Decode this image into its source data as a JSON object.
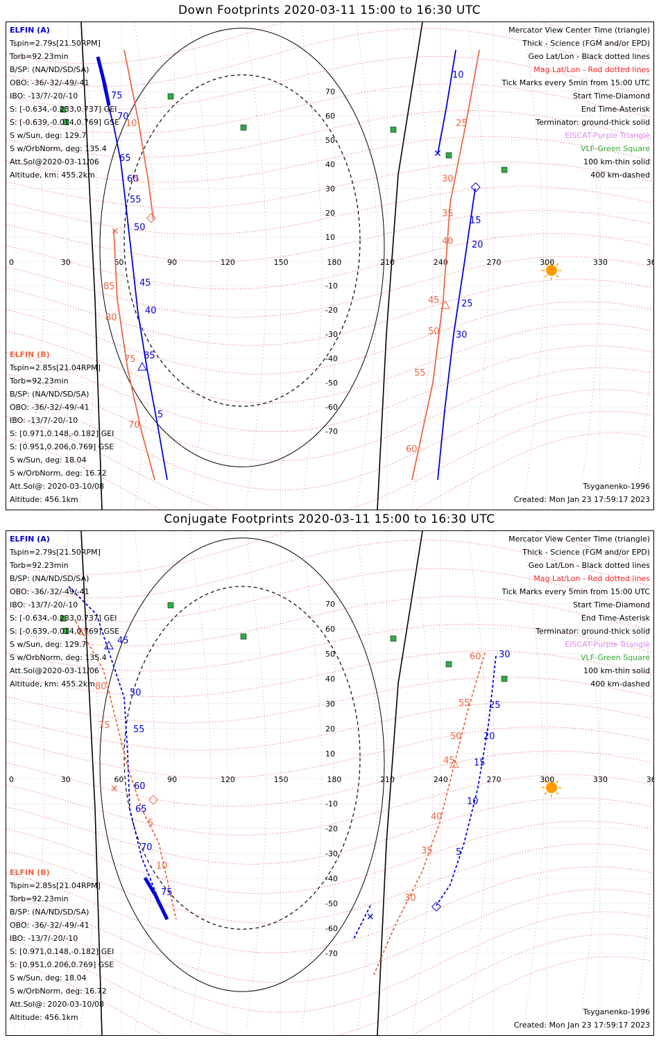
{
  "panels": [
    {
      "title": "Down Footprints 2020-03-11 15:00 to 16:30 UTC",
      "elfin_a": {
        "name": "ELFIN (A)",
        "lines": [
          "Tspin=2.79s[21.50RPM]",
          "Torb=92.23min",
          "B/SP: (NA/ND/SD/SA)",
          "OBO: -36/-32/-49/-41",
          "IBO: -13/7/-20/-10",
          "S: [-0.634,-0.233,0.737] GEI",
          "S: [-0.639,-0.014,0.769] GSE",
          "S w/Sun, deg: 129.7",
          "S w/OrbNorm, deg: 135.4",
          "Att.Sol@2020-03-11/06",
          "Altitude, km: 455.2km"
        ]
      },
      "elfin_b": {
        "name": "ELFIN (B)",
        "lines": [
          "Tspin=2.85s[21.04RPM]",
          "Torb=92.23min",
          "B/SP: (NA/ND/SD/SA)",
          "OBO: -36/-32/-49/-41",
          "IBO: -13/7/-20/-10",
          "S: [0.971,0.148,-0.182] GEI",
          "S: [0.951,0.206,0.769] GSE",
          "S w/Sun, deg: 18.04",
          "S w/OrbNorm, deg: 16.72",
          "Att.Sol@: 2020-03-10/08",
          "Altitude: 456.1km"
        ]
      },
      "footer_right": [
        "Tsyganenko-1996",
        "Created: Mon Jan 23 17:59:17 2023"
      ]
    },
    {
      "title": "Conjugate Footprints 2020-03-11 15:00 to 16:30 UTC",
      "elfin_a": {
        "name": "ELFIN (A)",
        "lines": [
          "Tspin=2.79s[21.50RPM]",
          "Torb=92.23min",
          "B/SP: (NA/ND/SD/SA)",
          "OBO: -36/-32/-49/-41",
          "IBO: -13/7/-20/-10",
          "S: [-0.634,-0.233,0.737] GEI",
          "S: [-0.639,-0.014,0.769] GSE",
          "S w/Sun, deg: 129.7",
          "S w/OrbNorm, deg: 135.4",
          "Att.Sol@2020-03-11/06",
          "Altitude, km: 455.2km"
        ]
      },
      "elfin_b": {
        "name": "ELFIN (B)",
        "lines": [
          "Tspin=2.85s[21.04RPM]",
          "Torb=92.23min",
          "B/SP: (NA/ND/SD/SA)",
          "OBO: -36/-32/-49/-41",
          "IBO: -13/7/-20/-10",
          "S: [0.971,0.148,-0.182] GEI",
          "S: [0.951,0.206,0.769] GSE",
          "S w/Sun, deg: 18.04",
          "S w/OrbNorm, deg: 16.72",
          "Att.Sol@: 2020-03-10/08",
          "Altitude: 456.1km"
        ]
      },
      "footer_right": [
        "Tsyganenko-1996",
        "Created: Mon Jan 23 17:59:17 2023"
      ]
    }
  ],
  "legend": [
    {
      "text": "Mercator View Center Time (triangle)",
      "color": "#000000"
    },
    {
      "text": "Thick - Science (FGM and/or EPD)",
      "color": "#000000"
    },
    {
      "text": "Geo Lat/Lon - Black dotted lines",
      "color": "#000000"
    },
    {
      "text": "Mag Lat/Lon - Red dotted lines",
      "color": "#ff2222"
    },
    {
      "text": "Tick Marks every 5min from 15:00 UTC",
      "color": "#000000"
    },
    {
      "text": "Start Time-Diamond",
      "color": "#000000"
    },
    {
      "text": "End Time-Asterisk",
      "color": "#000000"
    },
    {
      "text": "Terminator: ground-thick solid",
      "color": "#000000"
    },
    {
      "text": "EISCAT-Purple Triangle",
      "color": "#dd88ee"
    },
    {
      "text": "VLF-Green Square",
      "color": "#33aa33"
    },
    {
      "text": "100 km-thin solid",
      "color": "#000000"
    },
    {
      "text": "400 km-dashed",
      "color": "#000000"
    }
  ],
  "lon_labels": [
    "0",
    "30",
    "60",
    "90",
    "120",
    "150",
    "180",
    "210",
    "240",
    "270",
    "300",
    "330",
    "360"
  ],
  "lat_labels_north": [
    "70",
    "60",
    "50",
    "40",
    "30",
    "20",
    "10"
  ],
  "lat_labels_south": [
    "-10",
    "-20",
    "-30",
    "-40",
    "-50",
    "-60",
    "-70"
  ],
  "colors": {
    "elfin_a": "#0000dd",
    "elfin_b": "#ee6644",
    "mag_grid": "#ee2222",
    "geo_grid": "#000000",
    "vlf": "#33aa44",
    "eiscat": "#cc66dd",
    "sun": "#ff9900"
  },
  "tracks": {
    "down_a_ticks": [
      "85",
      "25",
      "30",
      "35",
      "40",
      "45",
      "50",
      "55",
      "60",
      "65",
      "70",
      "75",
      "80"
    ],
    "down_b_ticks": [
      "5",
      "10",
      "15",
      "20",
      "25",
      "30",
      "45",
      "55",
      "60",
      "65",
      "70",
      "75",
      "80",
      "85"
    ],
    "conj_a_ticks": [
      "30",
      "25",
      "20",
      "15",
      "10",
      "5",
      "45",
      "50",
      "55",
      "60",
      "65",
      "70",
      "75"
    ],
    "conj_b_ticks": [
      "60",
      "55",
      "50",
      "45",
      "40",
      "35",
      "30",
      "85",
      "80",
      "75",
      "5",
      "10"
    ]
  },
  "down_labels_a": [
    "75",
    "70",
    "65",
    "60",
    "55",
    "50",
    "45",
    "40",
    "85",
    "5",
    "10",
    "15",
    "20",
    "25",
    "30"
  ],
  "down_labels_b": [
    "10",
    "5",
    "85",
    "80",
    "75",
    "70",
    "25",
    "30",
    "35",
    "40",
    "45",
    "50",
    "55",
    "60"
  ],
  "conj_labels_a": [
    "45",
    "50",
    "55",
    "60",
    "65",
    "70",
    "75",
    "30",
    "25",
    "20",
    "15",
    "10",
    "5"
  ],
  "conj_labels_b": [
    "85",
    "80",
    "75",
    "5",
    "10",
    "60",
    "55",
    "50",
    "45",
    "40",
    "35",
    "30"
  ]
}
